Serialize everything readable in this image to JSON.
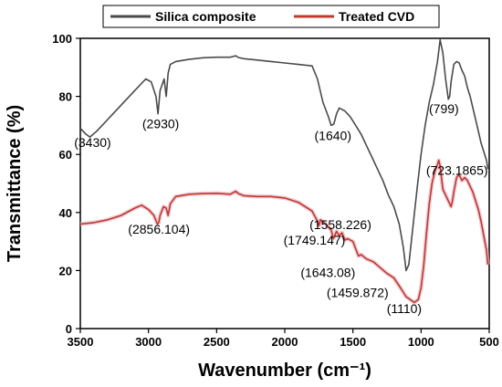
{
  "chart_data": {
    "type": "line",
    "xlabel": "Wavenumber (cm⁻¹)",
    "ylabel": "Transmittance (%)",
    "xlim": [
      3500,
      500
    ],
    "ylim": [
      0,
      100
    ],
    "x_ticks": [
      3500,
      3000,
      2500,
      2000,
      1500,
      1000,
      500
    ],
    "y_ticks": [
      0,
      20,
      40,
      60,
      80,
      100
    ],
    "grid": false,
    "legend_position": "top",
    "series": [
      {
        "name": "Silica composite",
        "color": "#4a4a4a",
        "x": [
          3500,
          3460,
          3430,
          3380,
          3300,
          3200,
          3100,
          3020,
          2980,
          2945,
          2930,
          2915,
          2885,
          2870,
          2856,
          2840,
          2800,
          2700,
          2600,
          2500,
          2400,
          2360,
          2340,
          2300,
          2200,
          2100,
          2000,
          1900,
          1800,
          1760,
          1720,
          1680,
          1660,
          1640,
          1620,
          1600,
          1580,
          1560,
          1520,
          1480,
          1440,
          1400,
          1360,
          1320,
          1280,
          1240,
          1200,
          1160,
          1130,
          1110,
          1090,
          1060,
          1030,
          1000,
          970,
          940,
          910,
          880,
          860,
          840,
          820,
          800,
          790,
          780,
          760,
          740,
          720,
          700,
          680,
          660,
          640,
          620,
          600,
          580,
          560,
          540,
          520,
          510
        ],
        "y": [
          69,
          67,
          66,
          68,
          72,
          77,
          82,
          86,
          85,
          80,
          74,
          82,
          86,
          80,
          88,
          91,
          92,
          92.8,
          93.3,
          93.5,
          93.5,
          94,
          93.4,
          93,
          92.5,
          92,
          91.5,
          91,
          90.5,
          86,
          78,
          73,
          70,
          70.5,
          74,
          76,
          75.5,
          75,
          73,
          70,
          67,
          63,
          59,
          55,
          51,
          46,
          42,
          36,
          28,
          20,
          22,
          35,
          48,
          60,
          70,
          78,
          84,
          92,
          99.5,
          95,
          86,
          79,
          80,
          85,
          91,
          92,
          91.5,
          89,
          87,
          83,
          80,
          76,
          72,
          68,
          64,
          61,
          58,
          55
        ]
      },
      {
        "name": "Treated CVD",
        "color": "#c0392b",
        "x": [
          3500,
          3400,
          3300,
          3200,
          3100,
          3050,
          3000,
          2960,
          2935,
          2925,
          2915,
          2890,
          2870,
          2856,
          2840,
          2800,
          2700,
          2600,
          2500,
          2400,
          2360,
          2340,
          2300,
          2200,
          2100,
          2000,
          1900,
          1800,
          1760,
          1749,
          1738,
          1700,
          1660,
          1643,
          1620,
          1600,
          1580,
          1558,
          1540,
          1500,
          1480,
          1459,
          1440,
          1400,
          1350,
          1300,
          1250,
          1200,
          1150,
          1110,
          1080,
          1050,
          1020,
          1000,
          980,
          960,
          940,
          920,
          900,
          880,
          870,
          860,
          850,
          840,
          820,
          800,
          790,
          780,
          770,
          760,
          740,
          723,
          710,
          700,
          680,
          660,
          640,
          620,
          600,
          580,
          560,
          540,
          520,
          510
        ],
        "y": [
          36,
          36.5,
          37.5,
          39,
          41.5,
          42.5,
          41,
          39,
          36,
          36.5,
          39,
          42,
          41.5,
          39,
          43,
          45.5,
          46.3,
          46.5,
          46.6,
          46.3,
          47.3,
          46.5,
          45.8,
          45.5,
          45.5,
          45,
          43.5,
          40.5,
          37,
          35.5,
          37.5,
          36,
          34,
          31,
          33.5,
          32,
          33,
          30.5,
          31,
          30,
          27.5,
          25,
          25.5,
          24,
          23,
          21,
          19,
          17.5,
          14,
          11,
          10,
          9,
          10,
          14,
          22,
          33,
          43,
          50,
          54,
          56.5,
          58,
          56,
          52,
          48,
          46,
          44,
          43,
          42,
          44,
          47,
          52,
          53,
          52,
          51,
          52,
          51,
          49,
          47,
          44,
          41,
          37,
          32,
          27,
          22
        ]
      }
    ],
    "annotations": [
      {
        "text": "(3430)",
        "x": 3430,
        "y": 66
      },
      {
        "text": "(2930)",
        "x": 2930,
        "y": 74
      },
      {
        "text": "(2856.104)",
        "x": 2856,
        "y": 39
      },
      {
        "text": "(1640)",
        "x": 1640,
        "y": 70
      },
      {
        "text": "(1558.226)",
        "x": 1558,
        "y": 30.5
      },
      {
        "text": "(1749.147)",
        "x": 1749,
        "y": 35.5
      },
      {
        "text": "(1643.08)",
        "x": 1643,
        "y": 31
      },
      {
        "text": "(1459.872)",
        "x": 1459,
        "y": 25
      },
      {
        "text": "(1110)",
        "x": 1110,
        "y": 11
      },
      {
        "text": "(799)",
        "x": 799,
        "y": 79
      },
      {
        "text": "(723.1865)",
        "x": 723,
        "y": 53
      }
    ]
  }
}
